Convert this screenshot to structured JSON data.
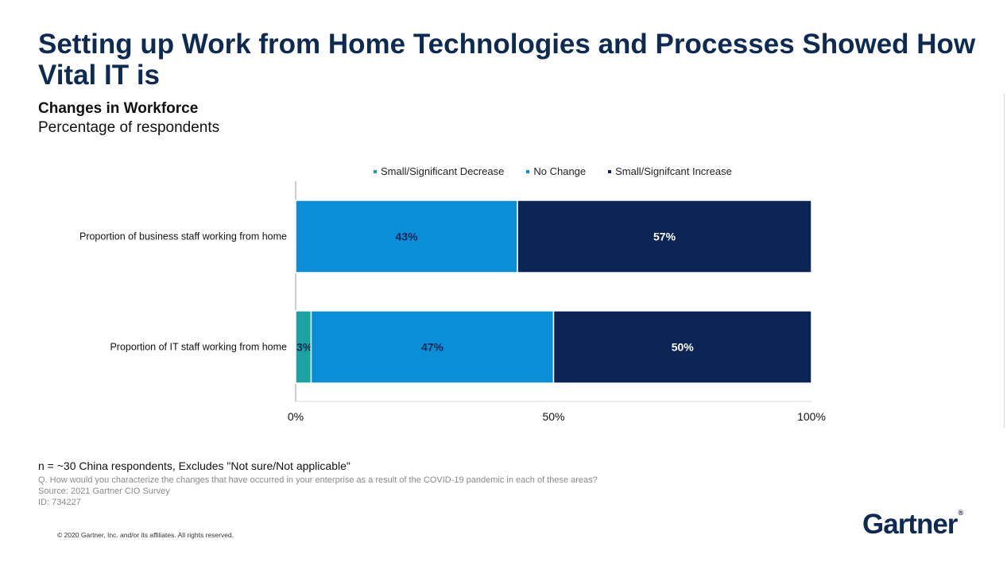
{
  "slide": {
    "title": "Setting up Work from Home Technologies and Processes Showed How Vital IT is",
    "subtitle": "Changes in Workforce",
    "subtitle_detail": "Percentage of respondents",
    "note": "n = ~30 China respondents, Excludes \"Not sure/Not applicable\"",
    "question": "Q. How would you characterize the changes that have occurred in your enterprise as a result of the COVID-19 pandemic in each of these areas?",
    "source": "Source: 2021 Gartner CIO Survey",
    "id": "ID: 734227",
    "copyright": "© 2020 Gartner, Inc. and/or its affiliates. All rights reserved.",
    "logo_text": "Gartner",
    "logo_mark": "®"
  },
  "chart_data": {
    "type": "bar",
    "orientation": "horizontal",
    "stacked": true,
    "categories": [
      "Proportion of business staff working from home",
      "Proportion of IT staff working from home"
    ],
    "series": [
      {
        "name": "Small/Significant Decrease",
        "values": [
          0,
          3
        ],
        "color": "#1aa3a3",
        "labels": [
          "",
          "3%"
        ]
      },
      {
        "name": "No Change",
        "values": [
          43,
          47
        ],
        "color": "#0b8ed8",
        "labels": [
          "43%",
          "47%"
        ]
      },
      {
        "name": "Small/Signifcant Increase",
        "values": [
          57,
          50
        ],
        "color": "#0b2654",
        "labels": [
          "57%",
          "50%"
        ]
      }
    ],
    "xlim": [
      0,
      100
    ],
    "xticks": [
      "0%",
      "50%",
      "100%"
    ],
    "xtick_values": [
      0,
      50,
      100
    ],
    "legend_position": "top",
    "grid": false
  }
}
